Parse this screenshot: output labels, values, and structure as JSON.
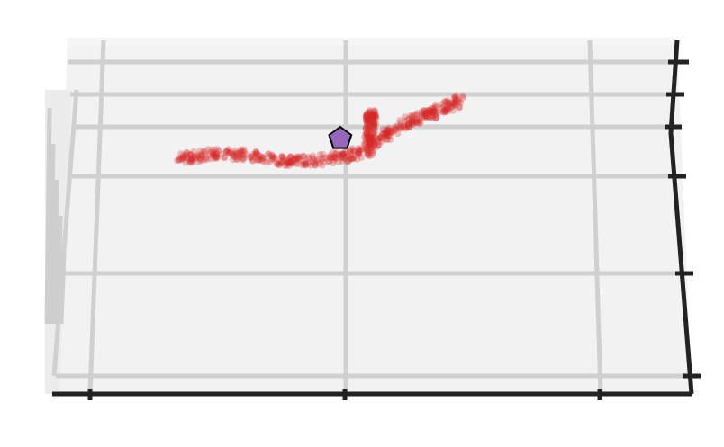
{
  "chart_data": {
    "type": "scatter",
    "projection": "3d",
    "title": "",
    "xlabel": "",
    "ylabel": "",
    "zlabel": "",
    "grid": true,
    "axis_tick_labels": "none",
    "colors": {
      "pane": "#f2f2f2",
      "pane_back": "#ececec",
      "gridline": "#d0d0d0",
      "axis_line": "#222222",
      "points": "#d62728",
      "marker": "#9467bd",
      "marker_edge": "#000000"
    },
    "series": [
      {
        "marker": "circle",
        "color": "#d62728",
        "alpha": 0.28,
        "trajectory": [
          {
            "x": 0.25,
            "y": 0.355
          },
          {
            "x": 0.3,
            "y": 0.345
          },
          {
            "x": 0.34,
            "y": 0.345
          },
          {
            "x": 0.37,
            "y": 0.355
          },
          {
            "x": 0.4,
            "y": 0.362
          },
          {
            "x": 0.44,
            "y": 0.358
          },
          {
            "x": 0.47,
            "y": 0.352
          },
          {
            "x": 0.49,
            "y": 0.345
          },
          {
            "x": 0.51,
            "y": 0.335
          },
          {
            "x": 0.53,
            "y": 0.305
          },
          {
            "x": 0.55,
            "y": 0.282
          },
          {
            "x": 0.58,
            "y": 0.262
          },
          {
            "x": 0.62,
            "y": 0.238
          },
          {
            "x": 0.64,
            "y": 0.222
          }
        ],
        "branch": [
          {
            "x": 0.51,
            "y": 0.325
          },
          {
            "x": 0.511,
            "y": 0.3
          },
          {
            "x": 0.512,
            "y": 0.275
          },
          {
            "x": 0.513,
            "y": 0.25
          }
        ]
      },
      {
        "marker": "pentagon",
        "color": "#9467bd",
        "points": [
          {
            "x": 0.47,
            "y": 0.31
          }
        ]
      }
    ]
  }
}
